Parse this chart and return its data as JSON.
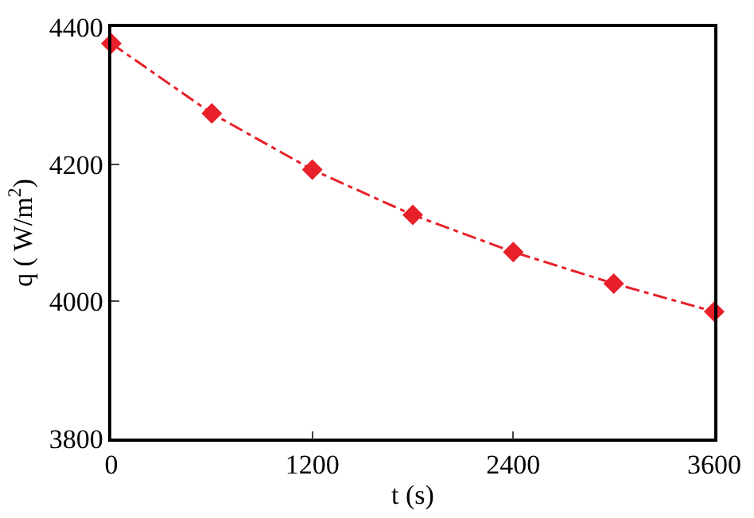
{
  "chart_data": {
    "type": "line",
    "xlabel": "t (s)",
    "ylabel": "q ( W/m$^{2}$)",
    "x": [
      0,
      600,
      1200,
      1800,
      2400,
      3000,
      3600
    ],
    "series": [
      {
        "color": "#e8202a",
        "values": [
          4376,
          4274,
          4192,
          4126,
          4072,
          4026,
          3985
        ]
      }
    ],
    "xlim": [
      0,
      3600
    ],
    "xticks": [
      0,
      1200,
      2400,
      3600
    ],
    "ylim": [
      3800,
      4400
    ],
    "yticks": [
      3800,
      4000,
      4200,
      4400
    ],
    "marker": "diamond",
    "line_style": "dashdot"
  }
}
